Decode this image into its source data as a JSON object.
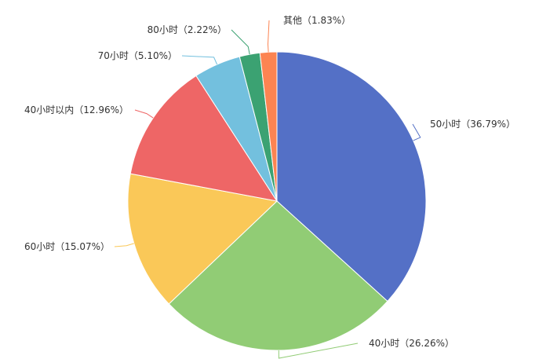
{
  "chart_data": {
    "type": "pie",
    "start_angle_deg": 90,
    "direction": "clockwise",
    "slices": [
      {
        "label": "50小时（36.79%）",
        "name": "50小时",
        "value": 36.79,
        "color": "#5470c6"
      },
      {
        "label": "40小时（26.26%）",
        "name": "40小时",
        "value": 26.26,
        "color": "#91cc75"
      },
      {
        "label": "60小时（15.07%）",
        "name": "60小时",
        "value": 15.07,
        "color": "#fac858"
      },
      {
        "label": "40小时以内（12.96%）",
        "name": "40小时以内",
        "value": 12.96,
        "color": "#ee6666"
      },
      {
        "label": "70小时（5.10%）",
        "name": "70小时",
        "value": 5.1,
        "color": "#73c0de"
      },
      {
        "label": "80小时（2.22%）",
        "name": "80小时",
        "value": 2.22,
        "color": "#3ba272"
      },
      {
        "label": "其他（1.83%）",
        "name": "其他",
        "value": 1.83,
        "color": "#fc8452"
      }
    ]
  }
}
